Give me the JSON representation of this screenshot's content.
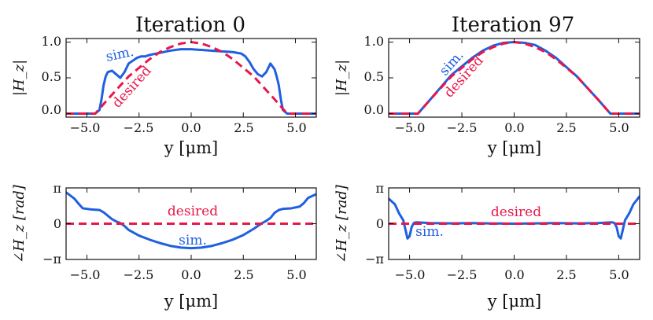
{
  "chart_data": [
    {
      "type": "line",
      "title": "Iteration 0",
      "xlabel": "y [μm]",
      "ylabel": "|H_z|",
      "xlim": [
        -6,
        6
      ],
      "ylim": [
        -0.05,
        1.05
      ],
      "xticks": [
        -5,
        -2.5,
        0,
        2.5,
        5
      ],
      "xtick_labels": [
        "−5.0",
        "−2.5",
        "0.0",
        "2.5",
        "5.0"
      ],
      "yticks": [
        0,
        0.5,
        1
      ],
      "ytick_labels": [
        "0.0",
        "0.5",
        "1.0"
      ],
      "series": [
        {
          "name": "sim.",
          "color": "#1f5fe0",
          "dashed": false,
          "x": [
            -6,
            -4.6,
            -4.4,
            -4.3,
            -4.2,
            -4.1,
            -4.0,
            -3.8,
            -3.6,
            -3.4,
            -3.2,
            -3.0,
            -2.8,
            -2.6,
            -2.4,
            -2.2,
            -2.0,
            -1.5,
            -1.0,
            -0.5,
            0,
            0.5,
            1.0,
            1.5,
            2.0,
            2.4,
            2.6,
            2.8,
            3.0,
            3.2,
            3.4,
            3.6,
            3.8,
            4.0,
            4.1,
            4.2,
            4.3,
            4.4,
            4.6,
            6
          ],
          "y": [
            0,
            0,
            0.05,
            0.2,
            0.4,
            0.52,
            0.58,
            0.6,
            0.55,
            0.5,
            0.58,
            0.7,
            0.74,
            0.78,
            0.8,
            0.8,
            0.82,
            0.85,
            0.88,
            0.9,
            0.9,
            0.89,
            0.88,
            0.87,
            0.86,
            0.84,
            0.8,
            0.72,
            0.62,
            0.55,
            0.52,
            0.58,
            0.7,
            0.62,
            0.52,
            0.4,
            0.2,
            0.05,
            0,
            0
          ]
        },
        {
          "name": "desired",
          "color": "#e8174a",
          "dashed": true,
          "x": [
            -6,
            -4.6,
            -4.3,
            -4.0,
            -3.5,
            -3.0,
            -2.5,
            -2.0,
            -1.5,
            -1.0,
            -0.5,
            0,
            0.5,
            1.0,
            1.5,
            2.0,
            2.5,
            3.0,
            3.5,
            4.0,
            4.3,
            4.6,
            6
          ],
          "y": [
            0,
            0,
            0.1,
            0.2,
            0.36,
            0.52,
            0.64,
            0.76,
            0.86,
            0.93,
            0.98,
            1.0,
            0.98,
            0.93,
            0.86,
            0.76,
            0.64,
            0.52,
            0.36,
            0.2,
            0.1,
            0,
            0
          ]
        }
      ],
      "annotations": [
        {
          "text": "sim.",
          "series": "sim."
        },
        {
          "text": "desired",
          "series": "desired"
        }
      ]
    },
    {
      "type": "line",
      "title": "Iteration 97",
      "xlabel": "y [μm]",
      "ylabel": "|H_z|",
      "xlim": [
        -6,
        6
      ],
      "ylim": [
        -0.05,
        1.05
      ],
      "xticks": [
        -5,
        -2.5,
        0,
        2.5,
        5
      ],
      "xtick_labels": [
        "−5.0",
        "−2.5",
        "0.0",
        "2.5",
        "5.0"
      ],
      "yticks": [
        0,
        0.5,
        1
      ],
      "ytick_labels": [
        "0.0",
        "0.5",
        "1.0"
      ],
      "series": [
        {
          "name": "sim.",
          "color": "#1f5fe0",
          "dashed": false,
          "x": [
            -6,
            -4.6,
            -4.3,
            -4.0,
            -3.5,
            -3.0,
            -2.5,
            -2.0,
            -1.5,
            -1.0,
            -0.5,
            0,
            0.5,
            1.0,
            1.5,
            2.0,
            2.5,
            3.0,
            3.5,
            4.0,
            4.3,
            4.6,
            6
          ],
          "y": [
            0,
            0,
            0.1,
            0.2,
            0.37,
            0.54,
            0.66,
            0.78,
            0.88,
            0.95,
            0.99,
            1.0,
            0.99,
            0.96,
            0.88,
            0.78,
            0.65,
            0.52,
            0.36,
            0.2,
            0.1,
            0,
            0
          ]
        },
        {
          "name": "desired",
          "color": "#e8174a",
          "dashed": true,
          "x": [
            -6,
            -4.6,
            -4.3,
            -4.0,
            -3.5,
            -3.0,
            -2.5,
            -2.0,
            -1.5,
            -1.0,
            -0.5,
            0,
            0.5,
            1.0,
            1.5,
            2.0,
            2.5,
            3.0,
            3.5,
            4.0,
            4.3,
            4.6,
            6
          ],
          "y": [
            0,
            0,
            0.1,
            0.2,
            0.36,
            0.52,
            0.64,
            0.76,
            0.86,
            0.93,
            0.98,
            1.0,
            0.98,
            0.93,
            0.86,
            0.76,
            0.64,
            0.52,
            0.36,
            0.2,
            0.1,
            0,
            0
          ]
        }
      ],
      "annotations": [
        {
          "text": "sim.",
          "series": "sim."
        },
        {
          "text": "desired",
          "series": "desired"
        }
      ]
    },
    {
      "type": "line",
      "title": "",
      "xlabel": "y [μm]",
      "ylabel": "∠H_z [rad]",
      "xlim": [
        -6,
        6
      ],
      "ylim": [
        -3.1416,
        3.1416
      ],
      "xticks": [
        -5,
        -2.5,
        0,
        2.5,
        5
      ],
      "xtick_labels": [
        "−5.0",
        "−2.5",
        "0.0",
        "2.5",
        "5.0"
      ],
      "yticks": [
        -3.1416,
        0,
        3.1416
      ],
      "ytick_labels": [
        "−π",
        "0",
        "π"
      ],
      "series": [
        {
          "name": "sim.",
          "color": "#1f5fe0",
          "dashed": false,
          "x": [
            -6,
            -5.6,
            -5.4,
            -5.2,
            -4.8,
            -4.4,
            -4.2,
            -4.0,
            -3.8,
            -3.6,
            -3.4,
            -3.2,
            -3.0,
            -2.5,
            -2.0,
            -1.5,
            -1.0,
            -0.5,
            0,
            0.5,
            1.0,
            1.5,
            2.0,
            2.5,
            3.0,
            3.2,
            3.4,
            3.6,
            3.8,
            4.0,
            4.2,
            4.4,
            4.8,
            5.2,
            5.4,
            5.6,
            6
          ],
          "y": [
            2.75,
            2.2,
            1.75,
            1.35,
            1.25,
            1.2,
            1.0,
            0.7,
            0.4,
            0.2,
            0.05,
            -0.2,
            -0.55,
            -1.05,
            -1.4,
            -1.7,
            -1.95,
            -2.1,
            -2.15,
            -2.1,
            -1.95,
            -1.7,
            -1.4,
            -1.0,
            -0.45,
            -0.2,
            0.05,
            0.25,
            0.5,
            0.95,
            1.2,
            1.3,
            1.35,
            1.5,
            1.8,
            2.25,
            2.6
          ]
        },
        {
          "name": "desired",
          "color": "#e8174a",
          "dashed": true,
          "x": [
            -6,
            6
          ],
          "y": [
            0,
            0
          ]
        }
      ],
      "annotations": [
        {
          "text": "desired",
          "series": "desired"
        },
        {
          "text": "sim.",
          "series": "sim."
        }
      ]
    },
    {
      "type": "line",
      "title": "",
      "xlabel": "y [μm]",
      "ylabel": "∠H_z [rad]",
      "xlim": [
        -6,
        6
      ],
      "ylim": [
        -3.1416,
        3.1416
      ],
      "xticks": [
        -5,
        -2.5,
        0,
        2.5,
        5
      ],
      "xtick_labels": [
        "−5.0",
        "−2.5",
        "0.0",
        "2.5",
        "5.0"
      ],
      "yticks": [
        -3.1416,
        0,
        3.1416
      ],
      "ytick_labels": [
        "−π",
        "0",
        "π"
      ],
      "series": [
        {
          "name": "sim.",
          "color": "#1f5fe0",
          "dashed": false,
          "x": [
            -6,
            -5.7,
            -5.5,
            -5.3,
            -5.2,
            -5.1,
            -5.0,
            -4.9,
            -4.8,
            -4.7,
            -4.5,
            -4.0,
            -3.0,
            -2.0,
            -1.0,
            0,
            1.0,
            2.0,
            3.0,
            4.0,
            4.5,
            4.7,
            4.8,
            4.9,
            5.0,
            5.1,
            5.2,
            5.3,
            5.5,
            5.7,
            6
          ],
          "y": [
            2.2,
            1.7,
            0.9,
            0.3,
            -0.5,
            -1.3,
            -1.1,
            -0.3,
            0.05,
            0.12,
            0.1,
            0.05,
            0.03,
            0.05,
            0.02,
            0.0,
            0.03,
            0.05,
            0.03,
            0.05,
            0.1,
            0.12,
            0.05,
            -0.3,
            -1.1,
            -1.3,
            -0.5,
            0.3,
            0.9,
            1.7,
            2.4
          ]
        },
        {
          "name": "desired",
          "color": "#e8174a",
          "dashed": true,
          "x": [
            -6,
            6
          ],
          "y": [
            0,
            0
          ]
        }
      ],
      "annotations": [
        {
          "text": "desired",
          "series": "desired"
        },
        {
          "text": "sim.",
          "series": "sim."
        }
      ]
    }
  ]
}
